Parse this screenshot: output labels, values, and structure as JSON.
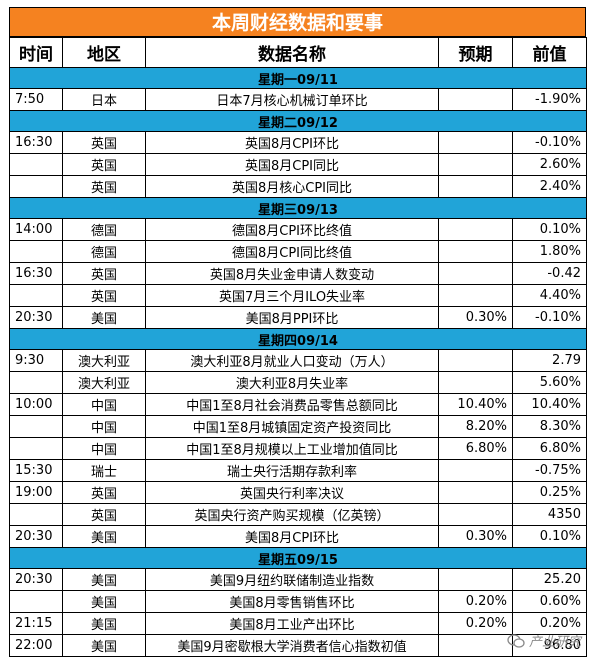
{
  "title": "本周财经数据和要事",
  "columns": {
    "time": "时间",
    "region": "地区",
    "name": "数据名称",
    "forecast": "预期",
    "previous": "前值"
  },
  "days": [
    {
      "label": "星期一09/11",
      "rows": [
        {
          "time": "7:50",
          "region": "日本",
          "name": "日本7月核心机械订单环比",
          "forecast": "",
          "previous": "-1.90%"
        }
      ]
    },
    {
      "label": "星期二09/12",
      "rows": [
        {
          "time": "16:30",
          "region": "英国",
          "name": "英国8月CPI环比",
          "forecast": "",
          "previous": "-0.10%"
        },
        {
          "time": "",
          "region": "英国",
          "name": "英国8月CPI同比",
          "forecast": "",
          "previous": "2.60%"
        },
        {
          "time": "",
          "region": "英国",
          "name": "英国8月核心CPI同比",
          "forecast": "",
          "previous": "2.40%"
        }
      ]
    },
    {
      "label": "星期三09/13",
      "rows": [
        {
          "time": "14:00",
          "region": "德国",
          "name": "德国8月CPI环比终值",
          "forecast": "",
          "previous": "0.10%"
        },
        {
          "time": "",
          "region": "德国",
          "name": "德国8月CPI同比终值",
          "forecast": "",
          "previous": "1.80%"
        },
        {
          "time": "16:30",
          "region": "英国",
          "name": "英国8月失业金申请人数变动",
          "forecast": "",
          "previous": "-0.42"
        },
        {
          "time": "",
          "region": "英国",
          "name": "英国7月三个月ILO失业率",
          "forecast": "",
          "previous": "4.40%"
        },
        {
          "time": "20:30",
          "region": "美国",
          "name": "美国8月PPI环比",
          "forecast": "0.30%",
          "previous": "-0.10%"
        }
      ]
    },
    {
      "label": "星期四09/14",
      "rows": [
        {
          "time": "9:30",
          "region": "澳大利亚",
          "name": "澳大利亚8月就业人口变动（万人）",
          "forecast": "",
          "previous": "2.79"
        },
        {
          "time": "",
          "region": "澳大利亚",
          "name": "澳大利亚8月失业率",
          "forecast": "",
          "previous": "5.60%"
        },
        {
          "time": "10:00",
          "region": "中国",
          "name": "中国1至8月社会消费品零售总额同比",
          "forecast": "10.40%",
          "previous": "10.40%"
        },
        {
          "time": "",
          "region": "中国",
          "name": "中国1至8月城镇固定资产投资同比",
          "forecast": "8.20%",
          "previous": "8.30%"
        },
        {
          "time": "",
          "region": "中国",
          "name": "中国1至8月规模以上工业增加值同比",
          "forecast": "6.80%",
          "previous": "6.80%"
        },
        {
          "time": "15:30",
          "region": "瑞士",
          "name": "瑞士央行活期存款利率",
          "forecast": "",
          "previous": "-0.75%"
        },
        {
          "time": "19:00",
          "region": "英国",
          "name": "英国央行利率决议",
          "forecast": "",
          "previous": "0.25%"
        },
        {
          "time": "",
          "region": "英国",
          "name": "英国央行资产购买规模（亿英镑）",
          "forecast": "",
          "previous": "4350"
        },
        {
          "time": "20:30",
          "region": "美国",
          "name": "美国8月CPI环比",
          "forecast": "0.30%",
          "previous": "0.10%"
        }
      ]
    },
    {
      "label": "星期五09/15",
      "rows": [
        {
          "time": "20:30",
          "region": "美国",
          "name": "美国9月纽约联储制造业指数",
          "forecast": "",
          "previous": "25.20"
        },
        {
          "time": "",
          "region": "美国",
          "name": "美国8月零售销售环比",
          "forecast": "0.20%",
          "previous": "0.60%"
        },
        {
          "time": "21:15",
          "region": "美国",
          "name": "美国8月工业产出环比",
          "forecast": "0.20%",
          "previous": "0.20%"
        },
        {
          "time": "22:00",
          "region": "美国",
          "name": "美国9月密歇根大学消费者信心指数初值",
          "forecast": "",
          "previous": "96.80"
        }
      ]
    }
  ],
  "watermark": "产业研究",
  "colors": {
    "title_bg": "#f58220",
    "day_header_bg": "#21a4d8"
  }
}
